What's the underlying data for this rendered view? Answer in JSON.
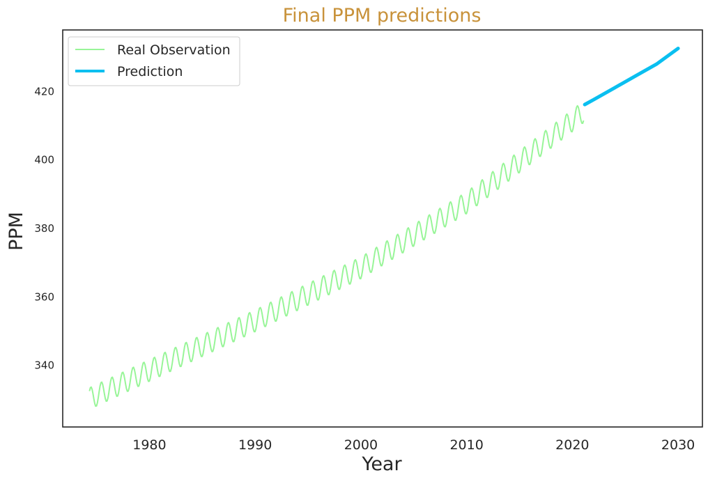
{
  "chart_data": {
    "type": "line",
    "title": "Final PPM predictions",
    "xlabel": "Year",
    "ylabel": "PPM",
    "xlim": [
      1971.8,
      2032.3
    ],
    "ylim": [
      322,
      438
    ],
    "x_ticks": [
      1980,
      1990,
      2000,
      2010,
      2020,
      2030
    ],
    "y_ticks": [
      340,
      360,
      380,
      400,
      420
    ],
    "grid": false,
    "legend_position": "top-left",
    "series": [
      {
        "name": "Real Observation",
        "color": "#98f598",
        "style": "seasonal monthly observations",
        "x_start": 1974.33,
        "x_end": 2021.1,
        "step": 0.0833,
        "trend": [
          {
            "x": 1974.33,
            "y": 330.3
          },
          {
            "x": 1980,
            "y": 338.5
          },
          {
            "x": 1990,
            "y": 353.0
          },
          {
            "x": 2000,
            "y": 368.5
          },
          {
            "x": 2010,
            "y": 387.5
          },
          {
            "x": 2020,
            "y": 411.5
          },
          {
            "x": 2021.1,
            "y": 414.2
          }
        ],
        "seasonal_amplitude": 3.2
      },
      {
        "name": "Prediction",
        "color": "#0abff0",
        "x": [
          2021.17,
          2022,
          2024,
          2026,
          2028,
          2030
        ],
        "y": [
          416.2,
          417.6,
          421.1,
          424.6,
          428.1,
          432.6
        ]
      }
    ]
  }
}
